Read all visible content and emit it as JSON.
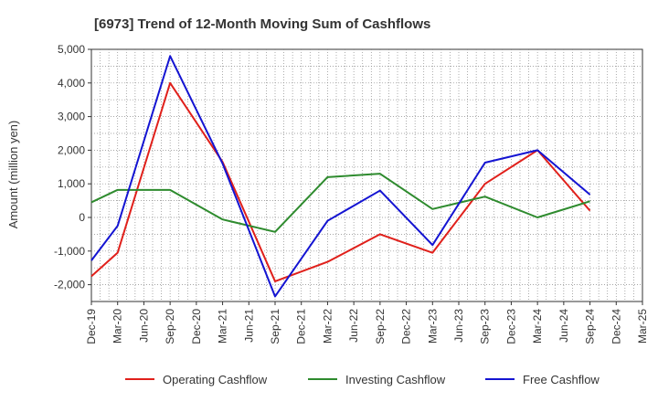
{
  "chart_data": {
    "type": "line",
    "title": "[6973]  Trend of 12-Month Moving Sum of Cashflows",
    "ylabel": "Amount (million yen)",
    "xlabel": "",
    "ylim": [
      -2500,
      5000
    ],
    "yticks": [
      -2000,
      -1000,
      0,
      1000,
      2000,
      3000,
      4000,
      5000
    ],
    "ytick_labels": [
      "-2,000",
      "-1,000",
      "0",
      "1,000",
      "2,000",
      "3,000",
      "4,000",
      "5,000"
    ],
    "categories": [
      "Dec-19",
      "Mar-20",
      "Jun-20",
      "Sep-20",
      "Dec-20",
      "Mar-21",
      "Jun-21",
      "Sep-21",
      "Dec-21",
      "Mar-22",
      "Jun-22",
      "Sep-22",
      "Dec-22",
      "Mar-23",
      "Jun-23",
      "Sep-23",
      "Dec-23",
      "Mar-24",
      "Jun-24",
      "Sep-24",
      "Dec-24",
      "Mar-25"
    ],
    "grid": true,
    "legend_position": "bottom",
    "series": [
      {
        "name": "Operating Cashflow",
        "color": "#e0201b",
        "points": [
          {
            "x": "Dec-19",
            "y": -1750
          },
          {
            "x": "Mar-20",
            "y": -1050
          },
          {
            "x": "Sep-20",
            "y": 4000
          },
          {
            "x": "Mar-21",
            "y": 1650
          },
          {
            "x": "Sep-21",
            "y": -1900
          },
          {
            "x": "Mar-22",
            "y": -1320
          },
          {
            "x": "Sep-22",
            "y": -500
          },
          {
            "x": "Mar-23",
            "y": -1050
          },
          {
            "x": "Sep-23",
            "y": 1000
          },
          {
            "x": "Mar-24",
            "y": 2000
          },
          {
            "x": "Sep-24",
            "y": 200
          }
        ]
      },
      {
        "name": "Investing Cashflow",
        "color": "#2e8b2e",
        "points": [
          {
            "x": "Dec-19",
            "y": 450
          },
          {
            "x": "Mar-20",
            "y": 820
          },
          {
            "x": "Sep-20",
            "y": 820
          },
          {
            "x": "Mar-21",
            "y": -60
          },
          {
            "x": "Sep-21",
            "y": -430
          },
          {
            "x": "Mar-22",
            "y": 1200
          },
          {
            "x": "Sep-22",
            "y": 1300
          },
          {
            "x": "Mar-23",
            "y": 250
          },
          {
            "x": "Sep-23",
            "y": 620
          },
          {
            "x": "Mar-24",
            "y": 0
          },
          {
            "x": "Sep-24",
            "y": 480
          }
        ]
      },
      {
        "name": "Free Cashflow",
        "color": "#1414d2",
        "points": [
          {
            "x": "Dec-19",
            "y": -1280
          },
          {
            "x": "Mar-20",
            "y": -250
          },
          {
            "x": "Sep-20",
            "y": 4800
          },
          {
            "x": "Mar-21",
            "y": 1600
          },
          {
            "x": "Sep-21",
            "y": -2350
          },
          {
            "x": "Mar-22",
            "y": -100
          },
          {
            "x": "Sep-22",
            "y": 800
          },
          {
            "x": "Mar-23",
            "y": -820
          },
          {
            "x": "Sep-23",
            "y": 1630
          },
          {
            "x": "Mar-24",
            "y": 2000
          },
          {
            "x": "Sep-24",
            "y": 680
          }
        ]
      }
    ]
  }
}
